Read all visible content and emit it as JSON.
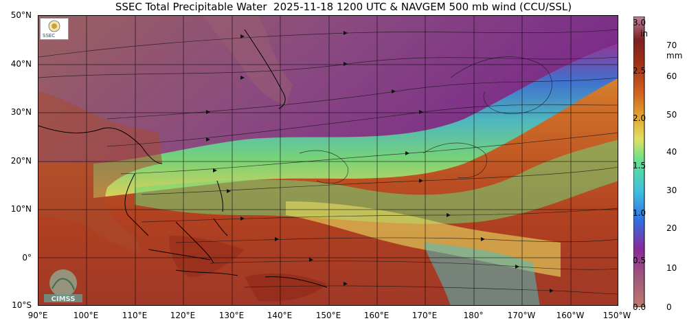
{
  "title": "SSEC Total Precipitable Water  2025-11-18 1200 UTC & NAVGEM 500 mb wind (CCU/SSL)",
  "lat_labels": [
    "50°N",
    "40°N",
    "30°N",
    "20°N",
    "10°N",
    "0°",
    "10°S"
  ],
  "lon_labels": [
    "90°E",
    "100°E",
    "110°E",
    "120°E",
    "130°E",
    "140°E",
    "150°E",
    "160°E",
    "170°E",
    "180°",
    "170°W",
    "160°W",
    "150°W"
  ],
  "colorbar": {
    "in_unit": "in",
    "mm_unit": "mm",
    "in_ticks": [
      "3.0",
      "2.5",
      "2.0",
      "1.5",
      "1.0",
      "0.5",
      "0.0"
    ],
    "mm_ticks": [
      "70",
      "60",
      "50",
      "40",
      "30",
      "20",
      "10",
      "0"
    ],
    "stops": [
      "#c07a6a",
      "#8a2a8a",
      "#9a4ab0",
      "#3080e0",
      "#40c0e0",
      "#60e080",
      "#e0e060",
      "#e0a030",
      "#d06020",
      "#a03018",
      "#7a2020",
      "#c080a0"
    ]
  },
  "logos": {
    "ssec_text": "SSEC",
    "cimss_text": "CIMSS"
  },
  "colors": {
    "dry": "#a0607a",
    "moist": "#c05a28",
    "stream": "#111111"
  }
}
